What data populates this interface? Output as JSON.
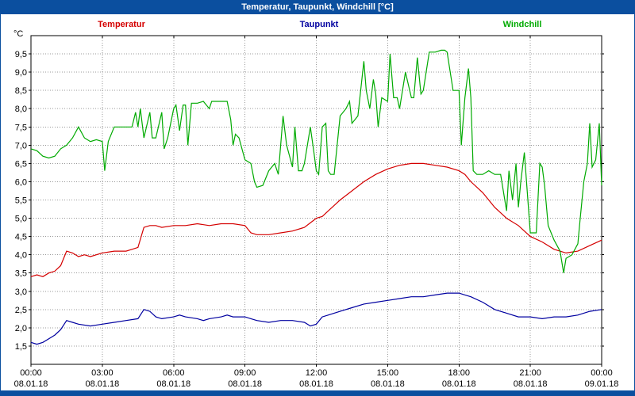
{
  "title_bar": {
    "text": "Temperatur, Taupunkt, Windchill [°C]",
    "bg": "#0b4f9f",
    "fg": "#ffffff"
  },
  "legend": {
    "items": [
      {
        "label": "Temperatur",
        "color": "#d40000"
      },
      {
        "label": "Taupunkt",
        "color": "#0000a0"
      },
      {
        "label": "Windchill",
        "color": "#00aa00"
      }
    ]
  },
  "chart_data": {
    "type": "line",
    "title": "Temperatur, Taupunkt, Windchill [°C]",
    "unit_label": "°C",
    "grid": true,
    "legend_position": "top",
    "ylim": [
      1.0,
      10.0
    ],
    "x_range_hours": [
      0,
      24
    ],
    "x_tick_hours": [
      0,
      3,
      6,
      9,
      12,
      15,
      18,
      21,
      24
    ],
    "x_tick_labels": [
      "00:00",
      "03:00",
      "06:00",
      "09:00",
      "12:00",
      "15:00",
      "18:00",
      "21:00",
      "00:00"
    ],
    "x_date_labels": [
      "08.01.18",
      "08.01.18",
      "08.01.18",
      "08.01.18",
      "08.01.18",
      "08.01.18",
      "08.01.18",
      "08.01.18",
      "09.01.18"
    ],
    "y_ticks": [
      {
        "value": 1.5,
        "label": "1,5"
      },
      {
        "value": 2.0,
        "label": "2,0"
      },
      {
        "value": 2.5,
        "label": "2,5"
      },
      {
        "value": 3.0,
        "label": "3,0"
      },
      {
        "value": 3.5,
        "label": "3,5"
      },
      {
        "value": 4.0,
        "label": "4,0"
      },
      {
        "value": 4.5,
        "label": "4,5"
      },
      {
        "value": 5.0,
        "label": "5,0"
      },
      {
        "value": 5.5,
        "label": "5,5"
      },
      {
        "value": 6.0,
        "label": "6,0"
      },
      {
        "value": 6.5,
        "label": "6,5"
      },
      {
        "value": 7.0,
        "label": "7,0"
      },
      {
        "value": 7.5,
        "label": "7,5"
      },
      {
        "value": 8.0,
        "label": "8,0"
      },
      {
        "value": 8.5,
        "label": "8,5"
      },
      {
        "value": 9.0,
        "label": "9,0"
      },
      {
        "value": 9.5,
        "label": "9,5"
      }
    ],
    "series": [
      {
        "name": "Temperatur",
        "color": "#d40000",
        "points": [
          [
            0,
            3.4
          ],
          [
            0.25,
            3.45
          ],
          [
            0.5,
            3.4
          ],
          [
            0.75,
            3.5
          ],
          [
            1,
            3.55
          ],
          [
            1.25,
            3.7
          ],
          [
            1.5,
            4.1
          ],
          [
            1.75,
            4.05
          ],
          [
            2,
            3.95
          ],
          [
            2.25,
            4.0
          ],
          [
            2.5,
            3.95
          ],
          [
            2.75,
            4.0
          ],
          [
            3,
            4.05
          ],
          [
            3.5,
            4.1
          ],
          [
            4,
            4.1
          ],
          [
            4.25,
            4.15
          ],
          [
            4.5,
            4.2
          ],
          [
            4.75,
            4.75
          ],
          [
            5,
            4.8
          ],
          [
            5.25,
            4.8
          ],
          [
            5.5,
            4.75
          ],
          [
            6,
            4.8
          ],
          [
            6.5,
            4.8
          ],
          [
            7,
            4.85
          ],
          [
            7.5,
            4.8
          ],
          [
            8,
            4.85
          ],
          [
            8.5,
            4.85
          ],
          [
            9,
            4.8
          ],
          [
            9.25,
            4.6
          ],
          [
            9.5,
            4.55
          ],
          [
            10,
            4.55
          ],
          [
            10.5,
            4.6
          ],
          [
            11,
            4.65
          ],
          [
            11.5,
            4.75
          ],
          [
            12,
            5.0
          ],
          [
            12.25,
            5.05
          ],
          [
            12.5,
            5.2
          ],
          [
            13,
            5.5
          ],
          [
            13.5,
            5.75
          ],
          [
            14,
            6.0
          ],
          [
            14.5,
            6.2
          ],
          [
            15,
            6.35
          ],
          [
            15.5,
            6.45
          ],
          [
            16,
            6.5
          ],
          [
            16.5,
            6.5
          ],
          [
            17,
            6.45
          ],
          [
            17.5,
            6.4
          ],
          [
            18,
            6.3
          ],
          [
            18.25,
            6.2
          ],
          [
            18.5,
            6.0
          ],
          [
            19,
            5.7
          ],
          [
            19.5,
            5.3
          ],
          [
            20,
            5.0
          ],
          [
            20.5,
            4.8
          ],
          [
            21,
            4.5
          ],
          [
            21.5,
            4.35
          ],
          [
            22,
            4.15
          ],
          [
            22.5,
            4.05
          ],
          [
            23,
            4.1
          ],
          [
            23.5,
            4.25
          ],
          [
            24,
            4.4
          ]
        ]
      },
      {
        "name": "Taupunkt",
        "color": "#0000a0",
        "points": [
          [
            0,
            1.6
          ],
          [
            0.25,
            1.55
          ],
          [
            0.5,
            1.6
          ],
          [
            0.75,
            1.7
          ],
          [
            1,
            1.8
          ],
          [
            1.25,
            1.95
          ],
          [
            1.5,
            2.2
          ],
          [
            1.75,
            2.15
          ],
          [
            2,
            2.1
          ],
          [
            2.5,
            2.05
          ],
          [
            3,
            2.1
          ],
          [
            3.5,
            2.15
          ],
          [
            4,
            2.2
          ],
          [
            4.5,
            2.25
          ],
          [
            4.75,
            2.5
          ],
          [
            5,
            2.45
          ],
          [
            5.25,
            2.3
          ],
          [
            5.5,
            2.25
          ],
          [
            6,
            2.3
          ],
          [
            6.25,
            2.35
          ],
          [
            6.5,
            2.3
          ],
          [
            7,
            2.25
          ],
          [
            7.25,
            2.2
          ],
          [
            7.5,
            2.25
          ],
          [
            8,
            2.3
          ],
          [
            8.25,
            2.35
          ],
          [
            8.5,
            2.3
          ],
          [
            9,
            2.3
          ],
          [
            9.25,
            2.25
          ],
          [
            9.5,
            2.2
          ],
          [
            10,
            2.15
          ],
          [
            10.5,
            2.2
          ],
          [
            11,
            2.2
          ],
          [
            11.5,
            2.15
          ],
          [
            11.75,
            2.05
          ],
          [
            12,
            2.1
          ],
          [
            12.25,
            2.3
          ],
          [
            12.5,
            2.35
          ],
          [
            13,
            2.45
          ],
          [
            13.5,
            2.55
          ],
          [
            14,
            2.65
          ],
          [
            14.5,
            2.7
          ],
          [
            15,
            2.75
          ],
          [
            15.5,
            2.8
          ],
          [
            16,
            2.85
          ],
          [
            16.5,
            2.85
          ],
          [
            17,
            2.9
          ],
          [
            17.5,
            2.95
          ],
          [
            18,
            2.95
          ],
          [
            18.25,
            2.9
          ],
          [
            18.5,
            2.85
          ],
          [
            19,
            2.7
          ],
          [
            19.5,
            2.5
          ],
          [
            20,
            2.4
          ],
          [
            20.5,
            2.3
          ],
          [
            21,
            2.3
          ],
          [
            21.5,
            2.25
          ],
          [
            22,
            2.3
          ],
          [
            22.5,
            2.3
          ],
          [
            23,
            2.35
          ],
          [
            23.5,
            2.45
          ],
          [
            24,
            2.5
          ]
        ]
      },
      {
        "name": "Windchill",
        "color": "#00aa00",
        "points": [
          [
            0,
            6.9
          ],
          [
            0.25,
            6.85
          ],
          [
            0.5,
            6.7
          ],
          [
            0.75,
            6.65
          ],
          [
            1,
            6.7
          ],
          [
            1.25,
            6.9
          ],
          [
            1.5,
            7.0
          ],
          [
            1.75,
            7.2
          ],
          [
            2,
            7.5
          ],
          [
            2.25,
            7.2
          ],
          [
            2.5,
            7.1
          ],
          [
            2.75,
            7.15
          ],
          [
            3,
            7.1
          ],
          [
            3.1,
            6.3
          ],
          [
            3.25,
            7.1
          ],
          [
            3.5,
            7.5
          ],
          [
            3.75,
            7.5
          ],
          [
            4,
            7.5
          ],
          [
            4.25,
            7.5
          ],
          [
            4.4,
            7.9
          ],
          [
            4.5,
            7.5
          ],
          [
            4.6,
            8.0
          ],
          [
            4.75,
            7.2
          ],
          [
            5,
            7.9
          ],
          [
            5.1,
            7.2
          ],
          [
            5.25,
            7.2
          ],
          [
            5.5,
            7.9
          ],
          [
            5.6,
            6.9
          ],
          [
            5.75,
            7.2
          ],
          [
            6,
            8.0
          ],
          [
            6.1,
            8.1
          ],
          [
            6.25,
            7.4
          ],
          [
            6.4,
            8.1
          ],
          [
            6.5,
            8.1
          ],
          [
            6.6,
            7.0
          ],
          [
            6.75,
            8.15
          ],
          [
            7,
            8.15
          ],
          [
            7.25,
            8.2
          ],
          [
            7.5,
            8.0
          ],
          [
            7.6,
            8.2
          ],
          [
            7.75,
            8.2
          ],
          [
            8,
            8.2
          ],
          [
            8.25,
            8.2
          ],
          [
            8.4,
            7.7
          ],
          [
            8.5,
            7.0
          ],
          [
            8.6,
            7.3
          ],
          [
            8.75,
            7.2
          ],
          [
            9,
            6.6
          ],
          [
            9.25,
            6.5
          ],
          [
            9.4,
            6.0
          ],
          [
            9.5,
            5.85
          ],
          [
            9.75,
            5.9
          ],
          [
            10,
            6.3
          ],
          [
            10.25,
            6.5
          ],
          [
            10.4,
            6.2
          ],
          [
            10.5,
            7.0
          ],
          [
            10.6,
            7.8
          ],
          [
            10.75,
            7.0
          ],
          [
            11,
            6.4
          ],
          [
            11.1,
            7.5
          ],
          [
            11.25,
            6.3
          ],
          [
            11.4,
            6.3
          ],
          [
            11.5,
            6.5
          ],
          [
            11.75,
            7.5
          ],
          [
            11.9,
            6.8
          ],
          [
            12,
            6.3
          ],
          [
            12.1,
            6.2
          ],
          [
            12.25,
            7.5
          ],
          [
            12.4,
            7.6
          ],
          [
            12.5,
            6.3
          ],
          [
            12.6,
            6.2
          ],
          [
            12.75,
            6.2
          ],
          [
            13,
            7.8
          ],
          [
            13.25,
            8.0
          ],
          [
            13.4,
            8.2
          ],
          [
            13.5,
            7.6
          ],
          [
            13.75,
            7.8
          ],
          [
            14,
            9.3
          ],
          [
            14.1,
            8.5
          ],
          [
            14.25,
            8.0
          ],
          [
            14.4,
            8.8
          ],
          [
            14.5,
            8.4
          ],
          [
            14.6,
            7.5
          ],
          [
            14.75,
            8.3
          ],
          [
            15,
            8.2
          ],
          [
            15.1,
            9.5
          ],
          [
            15.25,
            8.3
          ],
          [
            15.4,
            8.3
          ],
          [
            15.5,
            8.0
          ],
          [
            15.75,
            9.0
          ],
          [
            16,
            8.3
          ],
          [
            16.1,
            8.3
          ],
          [
            16.25,
            9.4
          ],
          [
            16.4,
            8.4
          ],
          [
            16.5,
            8.5
          ],
          [
            16.75,
            9.55
          ],
          [
            17,
            9.55
          ],
          [
            17.25,
            9.6
          ],
          [
            17.4,
            9.6
          ],
          [
            17.5,
            9.55
          ],
          [
            17.75,
            8.5
          ],
          [
            18,
            8.5
          ],
          [
            18.1,
            7.0
          ],
          [
            18.25,
            8.3
          ],
          [
            18.4,
            9.1
          ],
          [
            18.5,
            8.3
          ],
          [
            18.6,
            6.3
          ],
          [
            18.75,
            6.2
          ],
          [
            19,
            6.2
          ],
          [
            19.25,
            6.3
          ],
          [
            19.5,
            6.2
          ],
          [
            19.75,
            6.2
          ],
          [
            20,
            5.2
          ],
          [
            20.1,
            6.3
          ],
          [
            20.25,
            5.5
          ],
          [
            20.4,
            6.5
          ],
          [
            20.5,
            5.3
          ],
          [
            20.6,
            6.0
          ],
          [
            20.75,
            6.8
          ],
          [
            21,
            4.6
          ],
          [
            21.25,
            4.6
          ],
          [
            21.4,
            6.5
          ],
          [
            21.5,
            6.4
          ],
          [
            21.6,
            5.9
          ],
          [
            21.75,
            4.8
          ],
          [
            22,
            4.4
          ],
          [
            22.25,
            4.1
          ],
          [
            22.4,
            3.5
          ],
          [
            22.5,
            3.9
          ],
          [
            22.75,
            4.0
          ],
          [
            23,
            4.3
          ],
          [
            23.1,
            5.0
          ],
          [
            23.25,
            6.0
          ],
          [
            23.4,
            6.5
          ],
          [
            23.5,
            7.6
          ],
          [
            23.6,
            6.4
          ],
          [
            23.75,
            6.6
          ],
          [
            23.9,
            7.6
          ],
          [
            24,
            5.9
          ]
        ]
      }
    ],
    "style": {
      "grid_color": "#999999",
      "axis_color": "#000000",
      "plot_bg": "#ffffff"
    }
  }
}
